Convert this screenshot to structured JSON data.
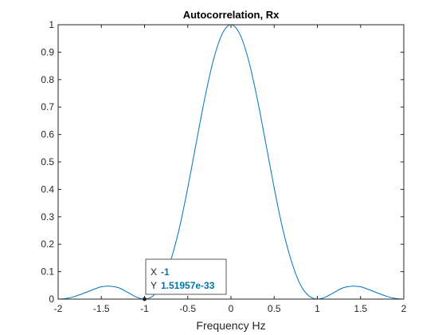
{
  "chart_data": {
    "type": "line",
    "title": "Autocorrelation, Rx",
    "xlabel": "Frequency Hz",
    "ylabel": "",
    "xlim": [
      -2,
      2
    ],
    "ylim": [
      0,
      1
    ],
    "x_ticks": [
      "-2",
      "-1.5",
      "-1",
      "-0.5",
      "0",
      "0.5",
      "1",
      "1.5",
      "2"
    ],
    "y_ticks": [
      "0",
      "0.1",
      "0.2",
      "0.3",
      "0.4",
      "0.5",
      "0.6",
      "0.7",
      "0.8",
      "0.9",
      "1"
    ],
    "grid": false,
    "series": [
      {
        "color": "#0072bd",
        "x": [
          -2,
          -1.9,
          -1.8,
          -1.7,
          -1.6,
          -1.5,
          -1.43,
          -1.4,
          -1.3,
          -1.2,
          -1.1,
          -1,
          -0.9,
          -0.8,
          -0.7,
          -0.6,
          -0.5,
          -0.4,
          -0.3,
          -0.2,
          -0.1,
          0,
          0.1,
          0.2,
          0.3,
          0.4,
          0.5,
          0.6,
          0.7,
          0.8,
          0.9,
          1,
          1.1,
          1.2,
          1.3,
          1.4,
          1.43,
          1.5,
          1.6,
          1.7,
          1.8,
          1.9,
          2
        ],
        "y": [
          0,
          0.0027,
          0.0104,
          0.0219,
          0.0342,
          0.045,
          0.0472,
          0.047,
          0.0414,
          0.0255,
          0.0082,
          0,
          0.0119,
          0.0547,
          0.1378,
          0.2546,
          0.4053,
          0.5728,
          0.7368,
          0.8751,
          0.9675,
          1,
          0.9675,
          0.8751,
          0.7368,
          0.5728,
          0.4053,
          0.2546,
          0.1378,
          0.0547,
          0.0119,
          0,
          0.0082,
          0.0255,
          0.0414,
          0.047,
          0.0472,
          0.045,
          0.0342,
          0.0219,
          0.0104,
          0.0027,
          0
        ]
      }
    ],
    "datatip": {
      "x_key": "X",
      "x_value": "-1",
      "y_key": "Y",
      "y_value": "1.51957e-33",
      "point": [
        -1,
        0
      ]
    }
  }
}
